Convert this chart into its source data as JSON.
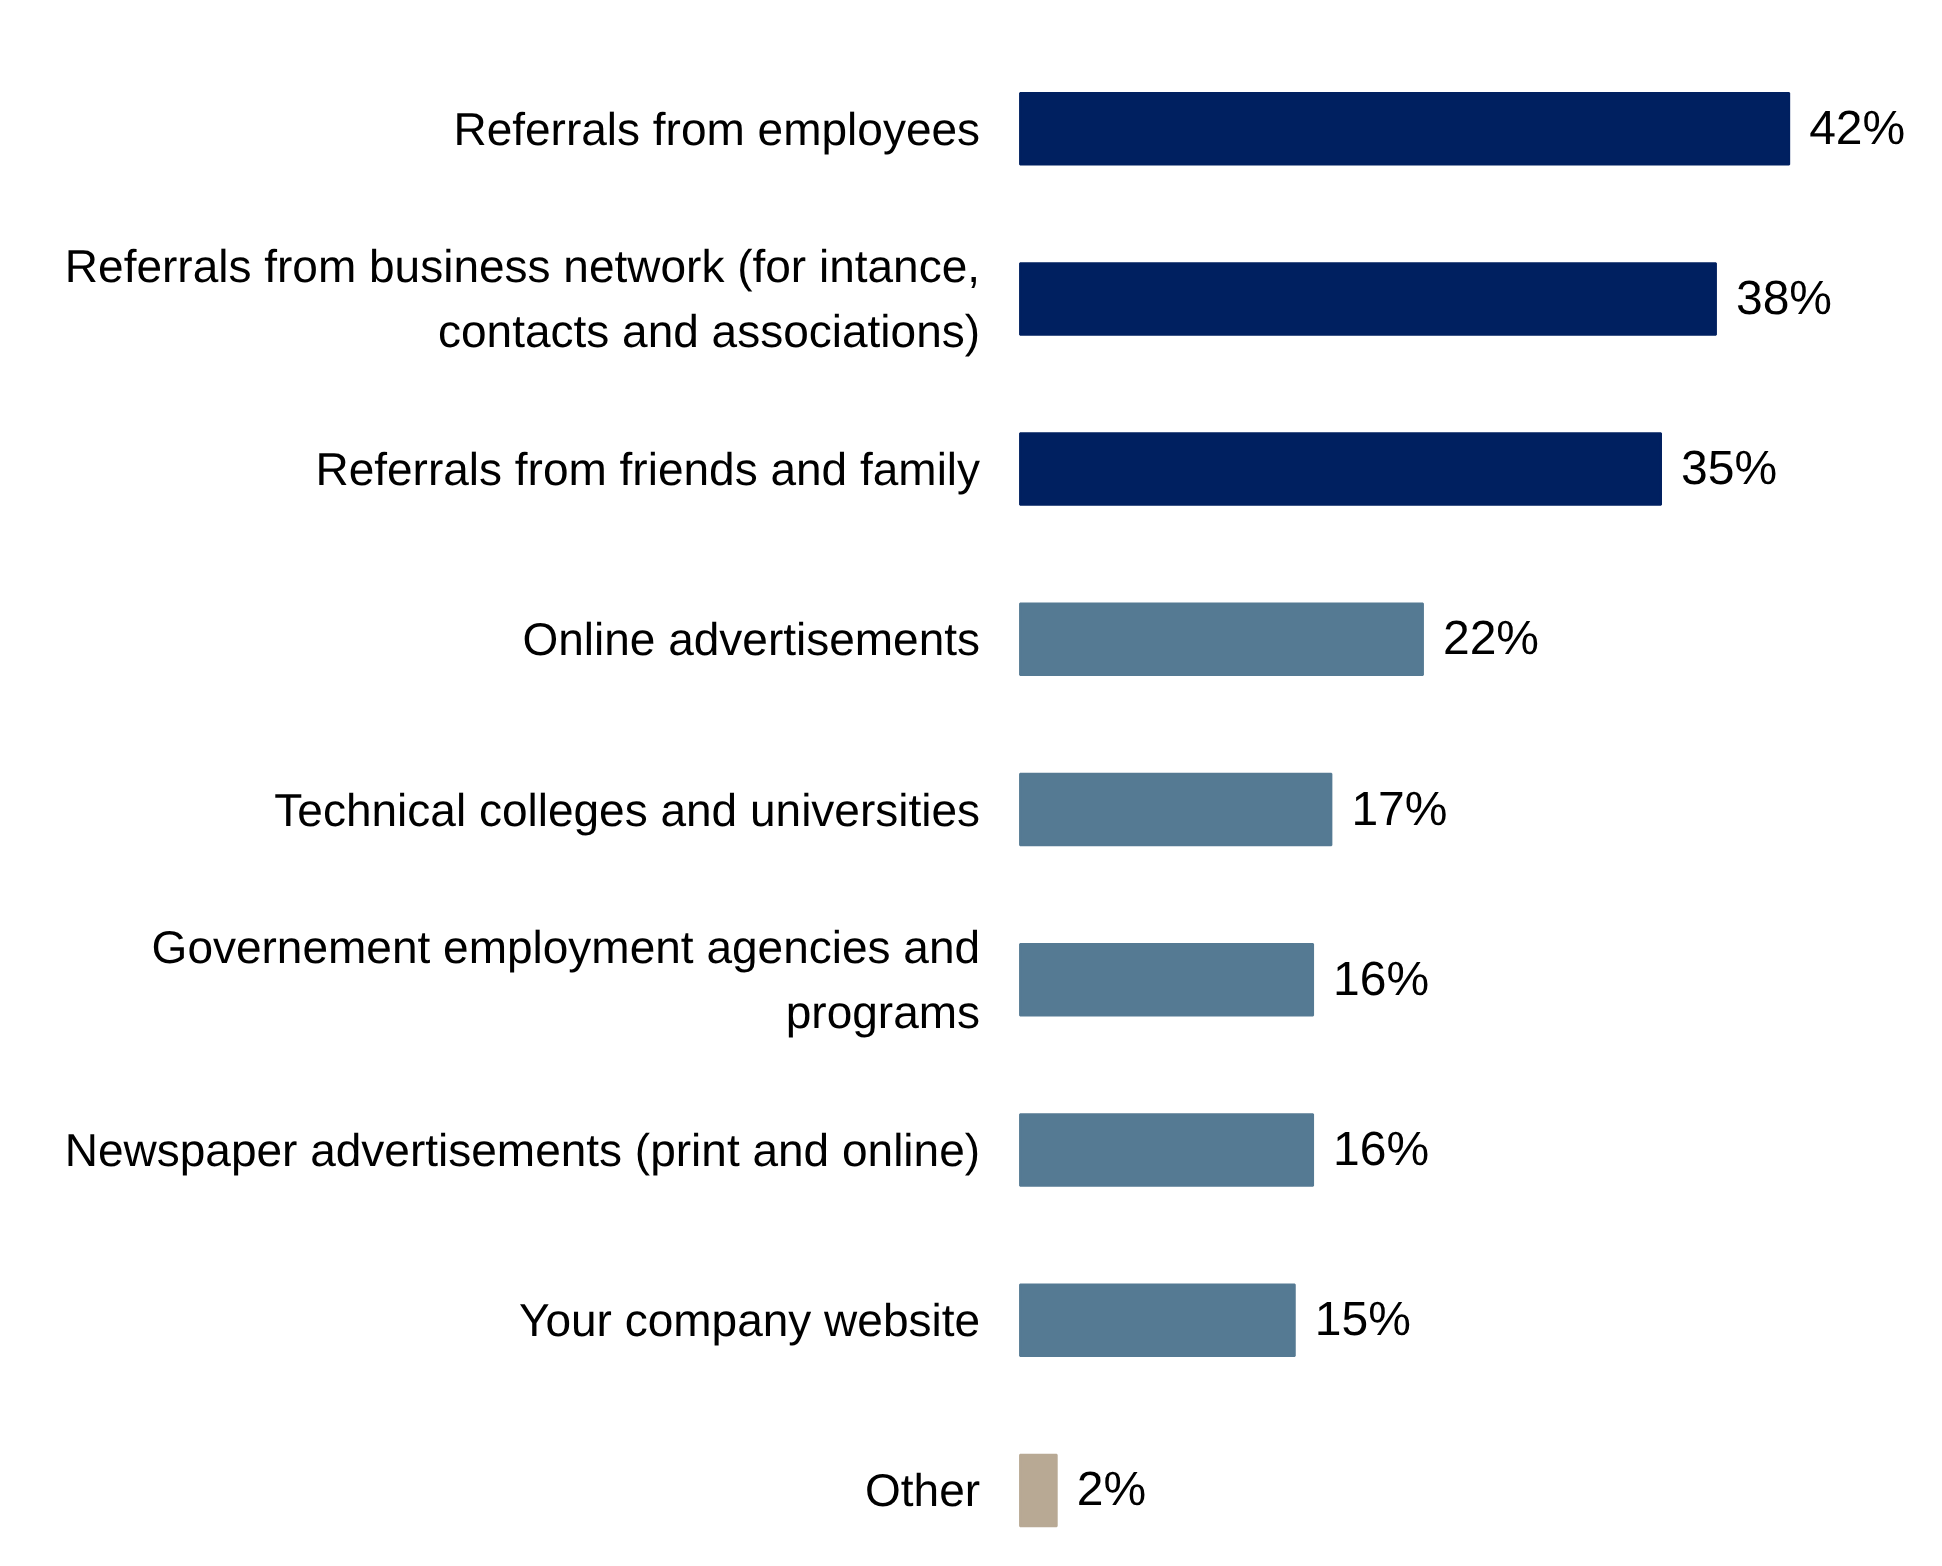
{
  "chart_data": {
    "type": "bar",
    "orientation": "horizontal",
    "categories": [
      "Referrals from employees",
      "Referrals from business network (for intance,\ncontacts and associations)",
      "Referrals from friends and family",
      "Online advertisements",
      "Technical colleges and universities",
      "Governement employment agencies and\nprograms",
      "Newspaper advertisements (print and online)",
      "Your company website",
      "Other"
    ],
    "values": [
      42,
      38,
      35,
      22,
      17,
      16,
      16,
      15,
      2
    ],
    "value_labels": [
      "42%",
      "38%",
      "35%",
      "22%",
      "17%",
      "16%",
      "16%",
      "15%",
      "2%"
    ],
    "colors": [
      "#002060",
      "#002060",
      "#002060",
      "#557a93",
      "#557a93",
      "#557a93",
      "#557a93",
      "#557a93",
      "#b8a994"
    ],
    "grid": false,
    "tick_labels": false
  }
}
